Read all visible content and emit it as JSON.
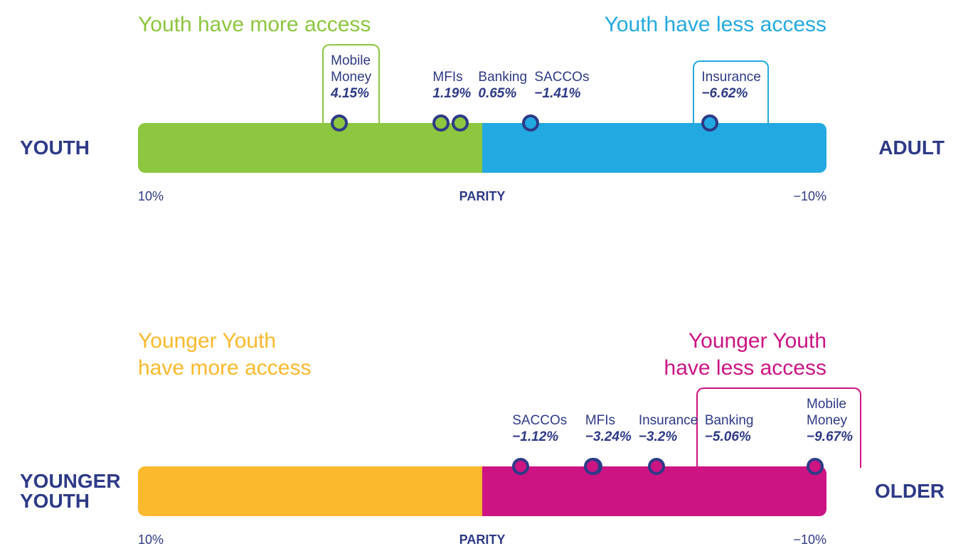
{
  "chart_data": [
    {
      "type": "parity",
      "left_label": "YOUTH",
      "right_label": "ADULT",
      "left_heading": "Youth have more access",
      "right_heading": "Youth have less access",
      "categories": [
        "Mobile\nMoney",
        "MFIs",
        "Banking",
        "SACCOs",
        "Insurance"
      ],
      "values": [
        4.15,
        1.19,
        0.65,
        -1.41,
        -6.62
      ],
      "value_labels": [
        "4.15%",
        "1.19%",
        "0.65%",
        "−1.41%",
        "−6.62%"
      ],
      "highlight": [
        0,
        4
      ],
      "xlim": [
        10,
        -10
      ],
      "xticks": [
        {
          "value": 10,
          "label": "10%"
        },
        {
          "value": 0,
          "label": "PARITY"
        },
        {
          "value": -10,
          "label": "−10%"
        }
      ],
      "left_color": "#8dc63f",
      "right_color": "#23a9e1",
      "dot_color": "#2e3a87"
    },
    {
      "type": "parity",
      "left_label": "YOUNGER\nYOUTH",
      "right_label": "OLDER",
      "left_heading": "Younger Youth\nhave more access",
      "right_heading": "Younger Youth\nhave less access",
      "categories": [
        "SACCOs",
        "MFIs",
        "Insurance",
        "Banking",
        "Mobile\nMoney"
      ],
      "values": [
        -1.12,
        -3.24,
        -3.2,
        -5.06,
        -9.67
      ],
      "value_labels": [
        "−1.12%",
        "−3.24%",
        "−3.2%",
        "−5.06%",
        "−9.67%"
      ],
      "highlight": [
        3,
        4
      ],
      "xlim": [
        10,
        -10
      ],
      "xticks": [
        {
          "value": 10,
          "label": "10%"
        },
        {
          "value": 0,
          "label": "PARITY"
        },
        {
          "value": -10,
          "label": "−10%"
        }
      ],
      "left_color": "#fbb92d",
      "right_color": "#cc1483",
      "dot_color": "#2e3a87"
    }
  ]
}
